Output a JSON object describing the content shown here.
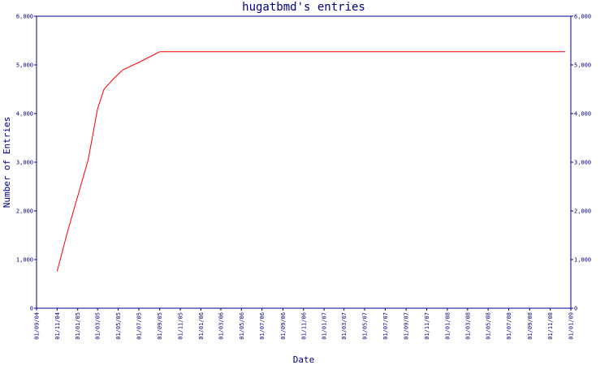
{
  "chart_data": {
    "type": "line",
    "title": "hugatbmd's entries",
    "xlabel": "Date",
    "ylabel": "Number of Entries",
    "ylim": [
      0,
      6000
    ],
    "y_ticks": [
      {
        "value": 0,
        "label": "0"
      },
      {
        "value": 1000,
        "label": "1,000"
      },
      {
        "value": 2000,
        "label": "2,000"
      },
      {
        "value": 3000,
        "label": "3,000"
      },
      {
        "value": 4000,
        "label": "4,000"
      },
      {
        "value": 5000,
        "label": "5,000"
      },
      {
        "value": 6000,
        "label": "6,000"
      }
    ],
    "x_ticks": [
      "01/09/04",
      "01/11/04",
      "01/01/05",
      "01/03/05",
      "01/05/05",
      "01/07/05",
      "01/09/05",
      "01/11/05",
      "01/01/06",
      "01/03/06",
      "01/05/06",
      "01/07/06",
      "01/09/06",
      "01/11/06",
      "01/01/07",
      "01/03/07",
      "01/05/07",
      "01/07/07",
      "01/09/07",
      "01/11/07",
      "01/01/08",
      "01/03/08",
      "01/05/08",
      "01/07/08",
      "01/09/08",
      "01/11/08",
      "01/01/09"
    ],
    "xlim": [
      "2004-09-01",
      "2009-01-01"
    ],
    "grid": false,
    "series": [
      {
        "color": "#ff0000",
        "points": [
          {
            "date": "2004-11-01",
            "y": 760
          },
          {
            "date": "2004-12-01",
            "y": 1550
          },
          {
            "date": "2005-01-01",
            "y": 2300
          },
          {
            "date": "2005-02-01",
            "y": 3050
          },
          {
            "date": "2005-03-01",
            "y": 4100
          },
          {
            "date": "2005-03-20",
            "y": 4500
          },
          {
            "date": "2005-04-15",
            "y": 4700
          },
          {
            "date": "2005-05-15",
            "y": 4900
          },
          {
            "date": "2005-07-01",
            "y": 5050
          },
          {
            "date": "2005-09-01",
            "y": 5270
          },
          {
            "date": "2008-12-15",
            "y": 5270
          }
        ]
      }
    ],
    "colors": {
      "axis": "#000080",
      "text": "#000080",
      "background": "#ffffff"
    }
  }
}
